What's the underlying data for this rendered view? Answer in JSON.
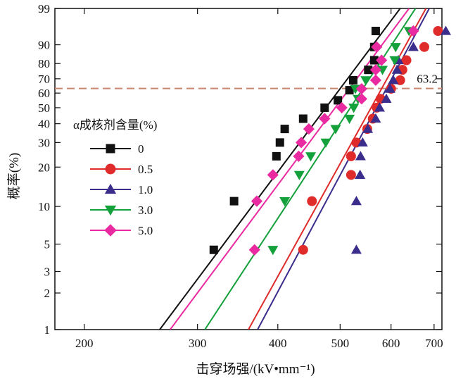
{
  "chart_data": {
    "type": "scatter",
    "title": "",
    "xlabel": "击穿场强/(kV•mm⁻¹)",
    "ylabel": "概率(%)",
    "x_scale": "log",
    "y_scale": "weibull",
    "xlim": [
      180,
      720
    ],
    "ylim": [
      1,
      99
    ],
    "x_ticks": [
      200,
      300,
      400,
      500,
      600,
      700
    ],
    "y_ticks": [
      1,
      2,
      3,
      5,
      10,
      20,
      30,
      40,
      50,
      60,
      70,
      80,
      90,
      99
    ],
    "grid": false,
    "legend_title": "α成核剂含量(%)",
    "legend_position": "center-left",
    "reference_line": {
      "y": 63.2,
      "label": "63.2",
      "color": "#c9856f"
    },
    "series": [
      {
        "name": "0",
        "color": "#111111",
        "marker": "square",
        "points": [
          [
            318,
            4.5
          ],
          [
            342,
            11
          ],
          [
            398,
            24
          ],
          [
            403,
            30
          ],
          [
            410,
            37
          ],
          [
            438,
            43
          ],
          [
            473,
            50
          ],
          [
            496,
            55
          ],
          [
            517,
            62
          ],
          [
            524,
            69
          ],
          [
            553,
            76
          ],
          [
            565,
            82
          ],
          [
            565,
            89
          ],
          [
            568,
            95
          ]
        ],
        "fit": [
          [
            262,
            1
          ],
          [
            620,
            99
          ]
        ]
      },
      {
        "name": "0.5",
        "color": "#e02b2b",
        "marker": "circle",
        "points": [
          [
            438,
            4.5
          ],
          [
            452,
            11
          ],
          [
            520,
            17.5
          ],
          [
            520,
            24
          ],
          [
            530,
            30
          ],
          [
            551,
            37
          ],
          [
            562,
            43
          ],
          [
            570,
            50
          ],
          [
            578,
            56
          ],
          [
            600,
            63
          ],
          [
            620,
            69
          ],
          [
            625,
            76
          ],
          [
            634,
            82
          ],
          [
            676,
            89
          ],
          [
            710,
            95
          ]
        ],
        "fit": [
          [
            360,
            1
          ],
          [
            680,
            99
          ]
        ]
      },
      {
        "name": "1.0",
        "color": "#3a2d8c",
        "marker": "triangle-up",
        "points": [
          [
            530,
            4.5
          ],
          [
            530,
            11
          ],
          [
            537,
            17.5
          ],
          [
            538,
            24
          ],
          [
            542,
            30
          ],
          [
            552,
            37
          ],
          [
            568,
            43
          ],
          [
            576,
            50
          ],
          [
            590,
            56
          ],
          [
            598,
            63
          ],
          [
            605,
            69
          ],
          [
            613,
            76
          ],
          [
            616,
            82
          ],
          [
            650,
            89
          ],
          [
            730,
            95
          ]
        ],
        "fit": [
          [
            372,
            1
          ],
          [
            688,
            99
          ]
        ]
      },
      {
        "name": "3.0",
        "color": "#14a03a",
        "marker": "triangle-down",
        "points": [
          [
            393,
            4.5
          ],
          [
            410,
            11
          ],
          [
            432,
            17.5
          ],
          [
            450,
            24
          ],
          [
            475,
            30
          ],
          [
            492,
            37
          ],
          [
            517,
            43
          ],
          [
            525,
            50
          ],
          [
            533,
            56
          ],
          [
            528,
            63
          ],
          [
            548,
            69
          ],
          [
            582,
            76
          ],
          [
            608,
            82
          ],
          [
            610,
            89
          ],
          [
            640,
            95
          ]
        ],
        "fit": [
          [
            308,
            1
          ],
          [
            655,
            99
          ]
        ]
      },
      {
        "name": "5.0",
        "color": "#ea2aa0",
        "marker": "diamond",
        "points": [
          [
            368,
            4.5
          ],
          [
            371,
            11
          ],
          [
            393,
            17.5
          ],
          [
            431,
            24
          ],
          [
            435,
            30
          ],
          [
            447,
            37
          ],
          [
            473,
            43
          ],
          [
            503,
            50
          ],
          [
            540,
            56
          ],
          [
            540,
            63
          ],
          [
            568,
            69
          ],
          [
            568,
            76
          ],
          [
            580,
            82
          ],
          [
            570,
            89
          ],
          [
            650,
            95
          ]
        ],
        "fit": [
          [
            272,
            1
          ],
          [
            640,
            99
          ]
        ]
      }
    ]
  }
}
